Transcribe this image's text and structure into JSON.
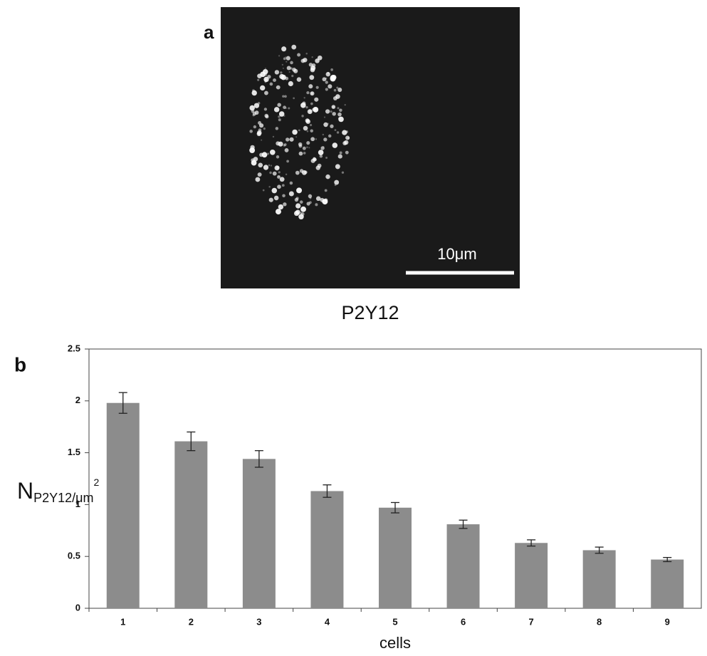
{
  "panel_a": {
    "label": "a",
    "scale_bar_label": "10μm",
    "caption": "P2Y12"
  },
  "panel_b_label": "b",
  "chart_data": {
    "type": "bar",
    "categories": [
      "1",
      "2",
      "3",
      "4",
      "5",
      "6",
      "7",
      "8",
      "9"
    ],
    "series": [
      {
        "color": "#8c8c8c",
        "values": [
          1.98,
          1.61,
          1.44,
          1.13,
          0.97,
          0.81,
          0.63,
          0.56,
          0.47
        ],
        "errors": [
          0.1,
          0.09,
          0.08,
          0.06,
          0.05,
          0.04,
          0.03,
          0.03,
          0.02
        ]
      }
    ],
    "ylim": [
      0,
      2.5
    ],
    "yticks": [
      0,
      0.5,
      1,
      1.5,
      2,
      2.5
    ],
    "xlabel": "cells",
    "ylabel": {
      "main": "N",
      "sub": "P2Y12/μm",
      "sup": "2"
    }
  }
}
